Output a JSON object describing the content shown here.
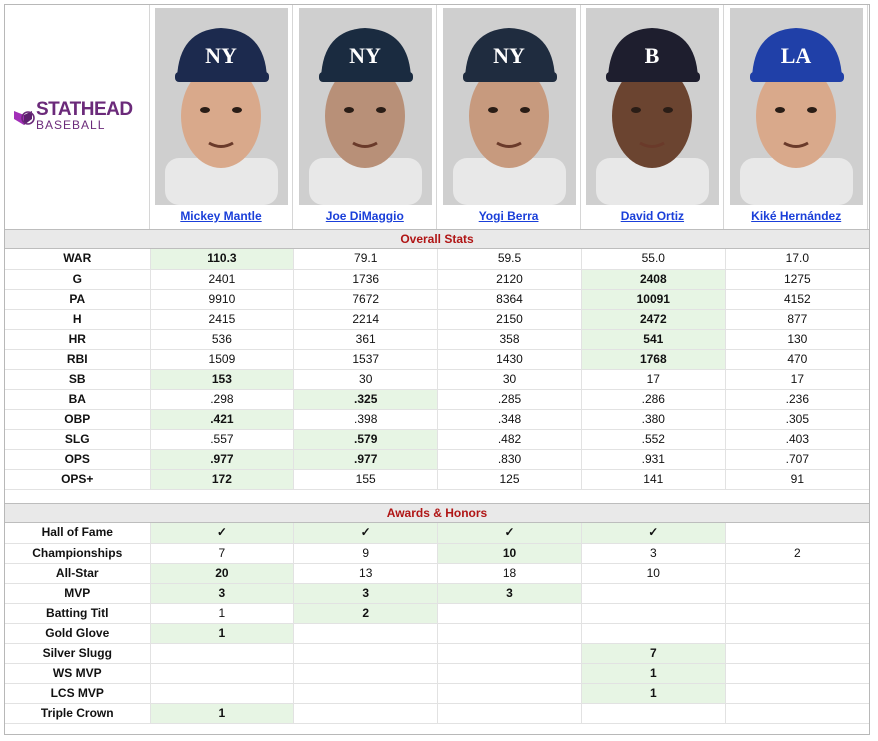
{
  "brand": {
    "name_top": "STATHEAD",
    "name_bottom": "BASEBALL"
  },
  "players": [
    {
      "name": "Mickey Mantle",
      "cap": "NY",
      "cap_color": "#1c2a4e",
      "skin": "#d9a98b"
    },
    {
      "name": "Joe DiMaggio",
      "cap": "NY",
      "cap_color": "#1a2b40",
      "skin": "#b89078"
    },
    {
      "name": "Yogi Berra",
      "cap": "NY",
      "cap_color": "#1f2c3f",
      "skin": "#c79a7e"
    },
    {
      "name": "David Ortiz",
      "cap": "B",
      "cap_color": "#1e1e2e",
      "skin": "#6b4430"
    },
    {
      "name": "Kiké Hernández",
      "cap": "LA",
      "cap_color": "#2040a8",
      "skin": "#d9a98b"
    }
  ],
  "sections": {
    "overall": "Overall Stats",
    "awards": "Awards & Honors"
  },
  "overall_rows": [
    {
      "label": "WAR",
      "values": [
        "110.3",
        "79.1",
        "59.5",
        "55.0",
        "17.0"
      ],
      "hl": [
        0
      ]
    },
    {
      "label": "G",
      "values": [
        "2401",
        "1736",
        "2120",
        "2408",
        "1275"
      ],
      "hl": [
        3
      ]
    },
    {
      "label": "PA",
      "values": [
        "9910",
        "7672",
        "8364",
        "10091",
        "4152"
      ],
      "hl": [
        3
      ]
    },
    {
      "label": "H",
      "values": [
        "2415",
        "2214",
        "2150",
        "2472",
        "877"
      ],
      "hl": [
        3
      ]
    },
    {
      "label": "HR",
      "values": [
        "536",
        "361",
        "358",
        "541",
        "130"
      ],
      "hl": [
        3
      ]
    },
    {
      "label": "RBI",
      "values": [
        "1509",
        "1537",
        "1430",
        "1768",
        "470"
      ],
      "hl": [
        3
      ]
    },
    {
      "label": "SB",
      "values": [
        "153",
        "30",
        "30",
        "17",
        "17"
      ],
      "hl": [
        0
      ]
    },
    {
      "label": "BA",
      "values": [
        ".298",
        ".325",
        ".285",
        ".286",
        ".236"
      ],
      "hl": [
        1
      ]
    },
    {
      "label": "OBP",
      "values": [
        ".421",
        ".398",
        ".348",
        ".380",
        ".305"
      ],
      "hl": [
        0
      ]
    },
    {
      "label": "SLG",
      "values": [
        ".557",
        ".579",
        ".482",
        ".552",
        ".403"
      ],
      "hl": [
        1
      ]
    },
    {
      "label": "OPS",
      "values": [
        ".977",
        ".977",
        ".830",
        ".931",
        ".707"
      ],
      "hl": [
        0,
        1
      ]
    },
    {
      "label": "OPS+",
      "values": [
        "172",
        "155",
        "125",
        "141",
        "91"
      ],
      "hl": [
        0
      ]
    }
  ],
  "award_rows": [
    {
      "label": "Hall of Fame",
      "values": [
        "✓",
        "✓",
        "✓",
        "✓",
        ""
      ],
      "hl": [
        0,
        1,
        2,
        3
      ]
    },
    {
      "label": "Championships",
      "values": [
        "7",
        "9",
        "10",
        "3",
        "2"
      ],
      "hl": [
        2
      ]
    },
    {
      "label": "All-Star",
      "values": [
        "20",
        "13",
        "18",
        "10",
        ""
      ],
      "hl": [
        0
      ]
    },
    {
      "label": "MVP",
      "values": [
        "3",
        "3",
        "3",
        "",
        ""
      ],
      "hl": [
        0,
        1,
        2
      ]
    },
    {
      "label": "Batting Titl",
      "values": [
        "1",
        "2",
        "",
        "",
        ""
      ],
      "hl": [
        1
      ]
    },
    {
      "label": "Gold Glove",
      "values": [
        "1",
        "",
        "",
        "",
        ""
      ],
      "hl": [
        0
      ]
    },
    {
      "label": "Silver Slugg",
      "values": [
        "",
        "",
        "",
        "7",
        ""
      ],
      "hl": [
        3
      ]
    },
    {
      "label": "WS MVP",
      "values": [
        "",
        "",
        "",
        "1",
        ""
      ],
      "hl": [
        3
      ]
    },
    {
      "label": "LCS MVP",
      "values": [
        "",
        "",
        "",
        "1",
        ""
      ],
      "hl": [
        3
      ]
    },
    {
      "label": "Triple Crown",
      "values": [
        "1",
        "",
        "",
        "",
        ""
      ],
      "hl": [
        0
      ]
    }
  ]
}
